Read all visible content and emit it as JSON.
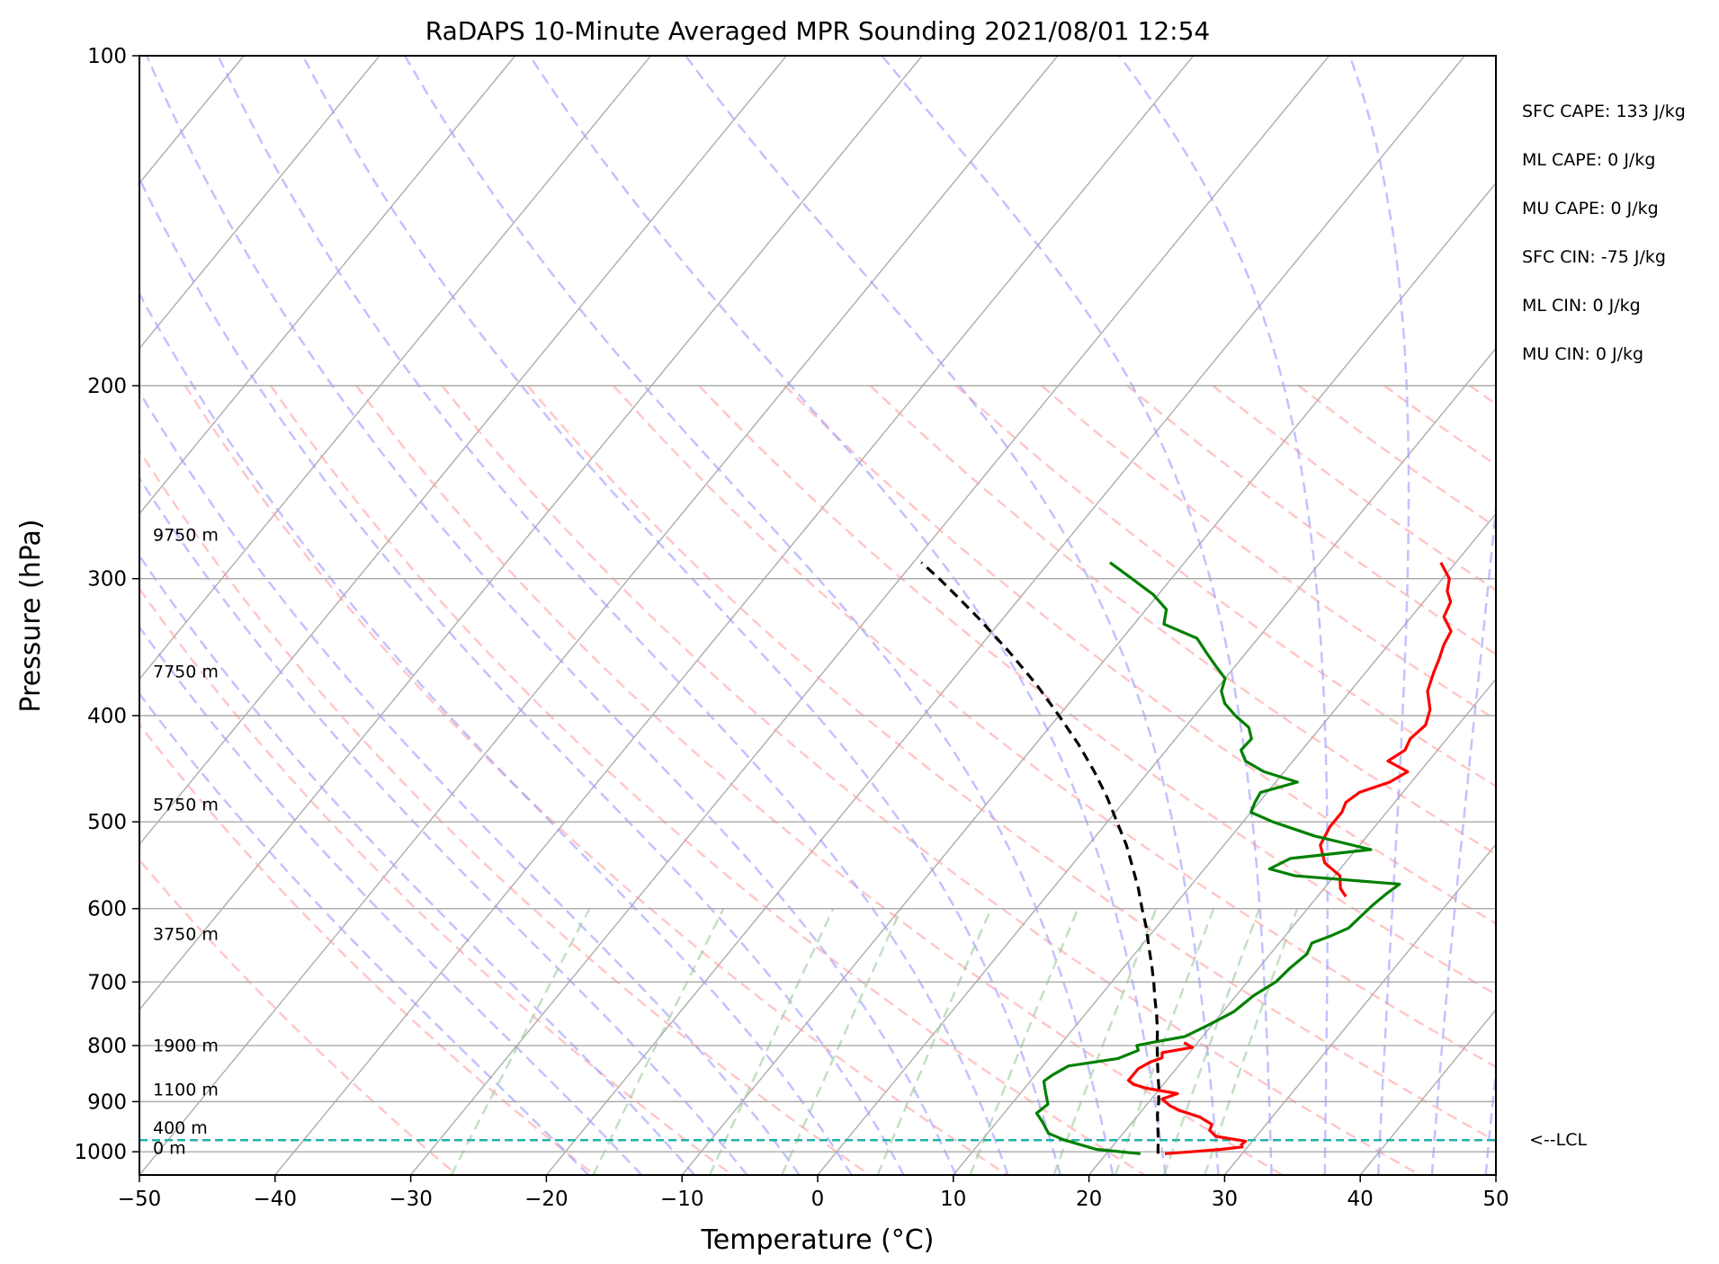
{
  "chart_data": {
    "type": "line",
    "title": "RaDAPS 10-Minute Averaged MPR Sounding 2021/08/01 12:54",
    "xlabel": "Temperature (°C)",
    "ylabel": "Pressure (hPa)",
    "xlim": [
      -50,
      50
    ],
    "ylim": [
      1050,
      100
    ],
    "y_scale": "log",
    "skew_t": true,
    "x_ticks": [
      -50,
      -40,
      -30,
      -20,
      -10,
      0,
      10,
      20,
      30,
      40,
      50
    ],
    "x_tick_labels": [
      "−50",
      "−40",
      "−30",
      "−20",
      "−10",
      "0",
      "10",
      "20",
      "30",
      "40",
      "50"
    ],
    "y_ticks": [
      100,
      200,
      300,
      400,
      500,
      600,
      700,
      800,
      900,
      1000
    ],
    "y_tick_labels": [
      "100",
      "200",
      "300",
      "400",
      "500",
      "600",
      "700",
      "800",
      "900",
      "1000"
    ],
    "grid": true,
    "series": [
      {
        "role": "temperature",
        "color": "#ff0000",
        "points": [
          [
            1004,
            24.3
          ],
          [
            1000,
            26.1
          ],
          [
            995,
            28.2
          ],
          [
            990,
            29.6
          ],
          [
            985,
            29.4
          ],
          [
            978,
            29.5
          ],
          [
            968,
            27.0
          ],
          [
            956,
            26.2
          ],
          [
            944,
            26.0
          ],
          [
            930,
            24.7
          ],
          [
            917,
            22.8
          ],
          [
            908,
            21.8
          ],
          [
            895,
            20.8
          ],
          [
            885,
            21.6
          ],
          [
            875,
            19.0
          ],
          [
            868,
            17.8
          ],
          [
            861,
            17.2
          ],
          [
            850,
            17.2
          ],
          [
            840,
            17.2
          ],
          [
            828,
            17.7
          ],
          [
            821,
            18.3
          ],
          [
            812,
            18.0
          ],
          [
            803,
            19.9
          ],
          [
            795,
            19.0
          ]
        ]
      },
      {
        "role": "temperature-upper",
        "color": "#ff0000",
        "points": [
          [
            585,
            22.1
          ],
          [
            575,
            21.2
          ],
          [
            560,
            20.4
          ],
          [
            545,
            18.5
          ],
          [
            525,
            17.1
          ],
          [
            505,
            16.7
          ],
          [
            490,
            16.7
          ],
          [
            480,
            16.4
          ],
          [
            470,
            16.8
          ],
          [
            460,
            18.4
          ],
          [
            450,
            19.1
          ],
          [
            440,
            17.0
          ],
          [
            430,
            17.6
          ],
          [
            420,
            17.3
          ],
          [
            408,
            17.6
          ],
          [
            395,
            17.0
          ],
          [
            380,
            15.7
          ],
          [
            365,
            15.0
          ],
          [
            355,
            14.6
          ],
          [
            345,
            14.1
          ],
          [
            335,
            13.8
          ],
          [
            325,
            12.4
          ],
          [
            315,
            12.0
          ],
          [
            308,
            11.1
          ],
          [
            300,
            10.5
          ],
          [
            295,
            9.7
          ],
          [
            290,
            8.9
          ]
        ]
      },
      {
        "role": "dewpoint",
        "color": "#008000",
        "points": [
          [
            1004,
            22.5
          ],
          [
            995,
            19.0
          ],
          [
            985,
            17.5
          ],
          [
            975,
            16.0
          ],
          [
            962,
            14.5
          ],
          [
            952,
            14.0
          ],
          [
            938,
            13.3
          ],
          [
            922,
            12.4
          ],
          [
            905,
            12.7
          ],
          [
            890,
            12.1
          ],
          [
            875,
            11.5
          ],
          [
            862,
            11.0
          ],
          [
            850,
            11.3
          ],
          [
            835,
            11.9
          ],
          [
            822,
            15.1
          ],
          [
            808,
            16.1
          ],
          [
            800,
            15.7
          ],
          [
            795,
            16.6
          ],
          [
            785,
            18.7
          ],
          [
            765,
            19.8
          ],
          [
            745,
            20.8
          ],
          [
            720,
            21.3
          ],
          [
            700,
            22.1
          ],
          [
            680,
            22.3
          ],
          [
            660,
            22.7
          ],
          [
            645,
            22.4
          ],
          [
            635,
            23.4
          ],
          [
            625,
            24.2
          ],
          [
            610,
            24.4
          ],
          [
            595,
            24.6
          ],
          [
            582,
            24.9
          ],
          [
            570,
            25.3
          ],
          [
            560,
            17.1
          ],
          [
            552,
            14.8
          ],
          [
            540,
            15.7
          ],
          [
            530,
            21.1
          ],
          [
            515,
            16.1
          ],
          [
            500,
            12.2
          ],
          [
            490,
            10.0
          ],
          [
            480,
            9.7
          ],
          [
            470,
            9.5
          ],
          [
            460,
            11.6
          ],
          [
            450,
            8.5
          ],
          [
            440,
            6.5
          ],
          [
            430,
            5.5
          ],
          [
            420,
            5.6
          ],
          [
            410,
            4.7
          ],
          [
            400,
            3.0
          ],
          [
            390,
            1.5
          ],
          [
            380,
            0.5
          ],
          [
            370,
            0.0
          ],
          [
            360,
            -1.5
          ],
          [
            350,
            -3.0
          ],
          [
            340,
            -4.5
          ],
          [
            330,
            -7.8
          ],
          [
            320,
            -8.5
          ],
          [
            310,
            -10.4
          ],
          [
            300,
            -12.9
          ],
          [
            290,
            -15.5
          ]
        ]
      },
      {
        "role": "parcel",
        "color": "#000000",
        "dashed": true,
        "points": [
          [
            1004,
            23.8
          ],
          [
            990,
            23.4
          ],
          [
            976,
            23.0
          ],
          [
            950,
            22.2
          ],
          [
            925,
            21.4
          ],
          [
            900,
            20.7
          ],
          [
            875,
            19.9
          ],
          [
            850,
            19.0
          ],
          [
            825,
            18.1
          ],
          [
            800,
            17.2
          ],
          [
            775,
            16.3
          ],
          [
            750,
            15.3
          ],
          [
            725,
            14.2
          ],
          [
            700,
            13.1
          ],
          [
            675,
            11.9
          ],
          [
            650,
            10.6
          ],
          [
            625,
            9.3
          ],
          [
            600,
            7.8
          ],
          [
            575,
            6.3
          ],
          [
            550,
            4.6
          ],
          [
            525,
            2.8
          ],
          [
            500,
            0.7
          ],
          [
            475,
            -1.5
          ],
          [
            450,
            -4.0
          ],
          [
            425,
            -6.8
          ],
          [
            400,
            -10.0
          ],
          [
            375,
            -13.5
          ],
          [
            350,
            -17.5
          ],
          [
            325,
            -22.0
          ],
          [
            310,
            -25.0
          ],
          [
            300,
            -27.1
          ],
          [
            290,
            -29.4
          ]
        ]
      }
    ],
    "lcl_pressure": 976,
    "lcl_label": "<--LCL",
    "height_labels": [
      {
        "pressure": 1004,
        "label": "0 m"
      },
      {
        "pressure": 963,
        "label": "400 m"
      },
      {
        "pressure": 888,
        "label": "1100 m"
      },
      {
        "pressure": 810,
        "label": "1900 m"
      },
      {
        "pressure": 641,
        "label": "3750 m"
      },
      {
        "pressure": 488,
        "label": "5750 m"
      },
      {
        "pressure": 369,
        "label": "7750 m"
      },
      {
        "pressure": 277,
        "label": "9750 m"
      }
    ],
    "annotations": [
      "SFC CAPE: 133 J/kg",
      "ML CAPE: 0 J/kg",
      "MU CAPE: 0 J/kg",
      "SFC CIN: -75 J/kg",
      "ML CIN: 0 J/kg",
      "MU CIN: 0 J/kg"
    ],
    "colors": {
      "temperature": "#ff0000",
      "dewpoint": "#008000",
      "parcel": "#000000",
      "lcl": "#20b2aa",
      "dry_adiabats": "#ff9999",
      "moist_adiabats": "#9999ff",
      "mixing_ratio": "#99cc99",
      "isotherms": "#999999"
    }
  }
}
